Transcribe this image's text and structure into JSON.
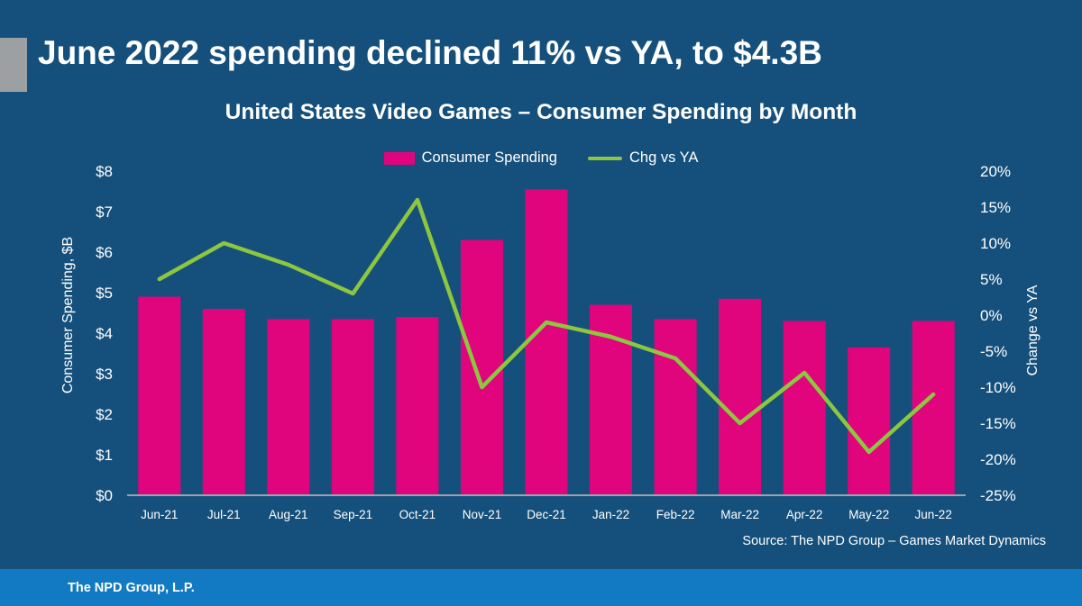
{
  "slide": {
    "title": "June 2022 spending declined 11% vs YA, to $4.3B",
    "subtitle": "United States Video Games – Consumer Spending by Month",
    "source": "Source: The NPD Group – Games Market Dynamics",
    "footer": "The NPD Group, L.P."
  },
  "colors": {
    "background": "#15507C",
    "footer_band": "#127AC2",
    "bar": "#E0047D",
    "line": "#8DC63F",
    "accent_bar": "#9DA0A3",
    "axis_line": "#9AA4AA",
    "text": "#FFFFFF"
  },
  "legend": [
    {
      "label": "Consumer Spending",
      "type": "bar"
    },
    {
      "label": "Chg vs YA",
      "type": "line"
    }
  ],
  "chart_data": {
    "type": "bar",
    "subtype": "bar-and-line-combo",
    "categories": [
      "Jun-21",
      "Jul-21",
      "Aug-21",
      "Sep-21",
      "Oct-21",
      "Nov-21",
      "Dec-21",
      "Jan-22",
      "Feb-22",
      "Mar-22",
      "Apr-22",
      "May-22",
      "Jun-22"
    ],
    "series": [
      {
        "name": "Consumer Spending",
        "type": "bar",
        "axis": "left",
        "color": "#E0047D",
        "values": [
          4.9,
          4.6,
          4.35,
          4.35,
          4.4,
          6.3,
          7.55,
          4.7,
          4.35,
          4.85,
          4.3,
          3.65,
          4.3
        ]
      },
      {
        "name": "Chg vs YA",
        "type": "line",
        "axis": "right",
        "color": "#8DC63F",
        "values": [
          5,
          10,
          7,
          3,
          16,
          -10,
          -1,
          -3,
          -6,
          -15,
          -8,
          -19,
          -11
        ]
      }
    ],
    "left_axis": {
      "title": "Consumer Spending, $B",
      "min": 0,
      "max": 8,
      "tick_step": 1,
      "tick_prefix": "$"
    },
    "right_axis": {
      "title": "Change vs YA",
      "min": -25,
      "max": 20,
      "tick_step": 5,
      "tick_suffix": "%"
    },
    "grid": false,
    "legend_position": "top-center",
    "title": "United States Video Games – Consumer Spending by Month"
  }
}
